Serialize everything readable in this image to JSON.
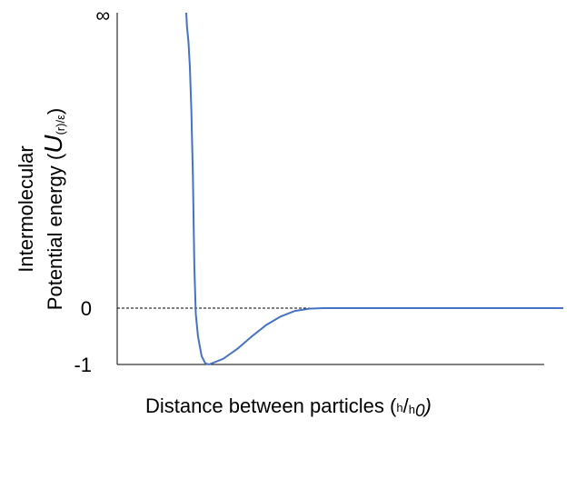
{
  "chart_data": {
    "type": "line",
    "xlabel": {
      "main": "Distance between particles (",
      "num": "h",
      "slash": "/",
      "den_base": "h",
      "den_sub": "0",
      "close": ")"
    },
    "ylabel": {
      "line1": "Intermolecular",
      "line2_main": "Potential energy (",
      "line2_symbol": "U",
      "line2_sub": "(r)/ε",
      "line2_close": ")"
    },
    "yticks": [
      "-1",
      "0",
      "∞"
    ],
    "ylim": [
      -1,
      "∞"
    ],
    "reference_line": {
      "y": 0,
      "style": "dashed"
    },
    "series": [
      {
        "color": "#4472c4",
        "points": [
          [
            0.99,
            "∞"
          ],
          [
            1.0,
            28
          ],
          [
            1.02,
            12
          ],
          [
            1.04,
            5.5
          ],
          [
            1.06,
            2.5
          ],
          [
            1.08,
            1.0
          ],
          [
            1.1,
            0.2
          ],
          [
            1.12,
            -0.1
          ],
          [
            1.15,
            -0.5
          ],
          [
            1.2,
            -0.85
          ],
          [
            1.25,
            -0.98
          ],
          [
            1.3,
            -1.0
          ],
          [
            1.4,
            -0.9
          ],
          [
            1.5,
            -0.72
          ],
          [
            1.6,
            -0.5
          ],
          [
            1.7,
            -0.3
          ],
          [
            1.8,
            -0.15
          ],
          [
            1.9,
            -0.05
          ],
          [
            2.0,
            -0.01
          ],
          [
            2.1,
            0.0
          ],
          [
            5.0,
            0.0
          ]
        ]
      }
    ]
  }
}
